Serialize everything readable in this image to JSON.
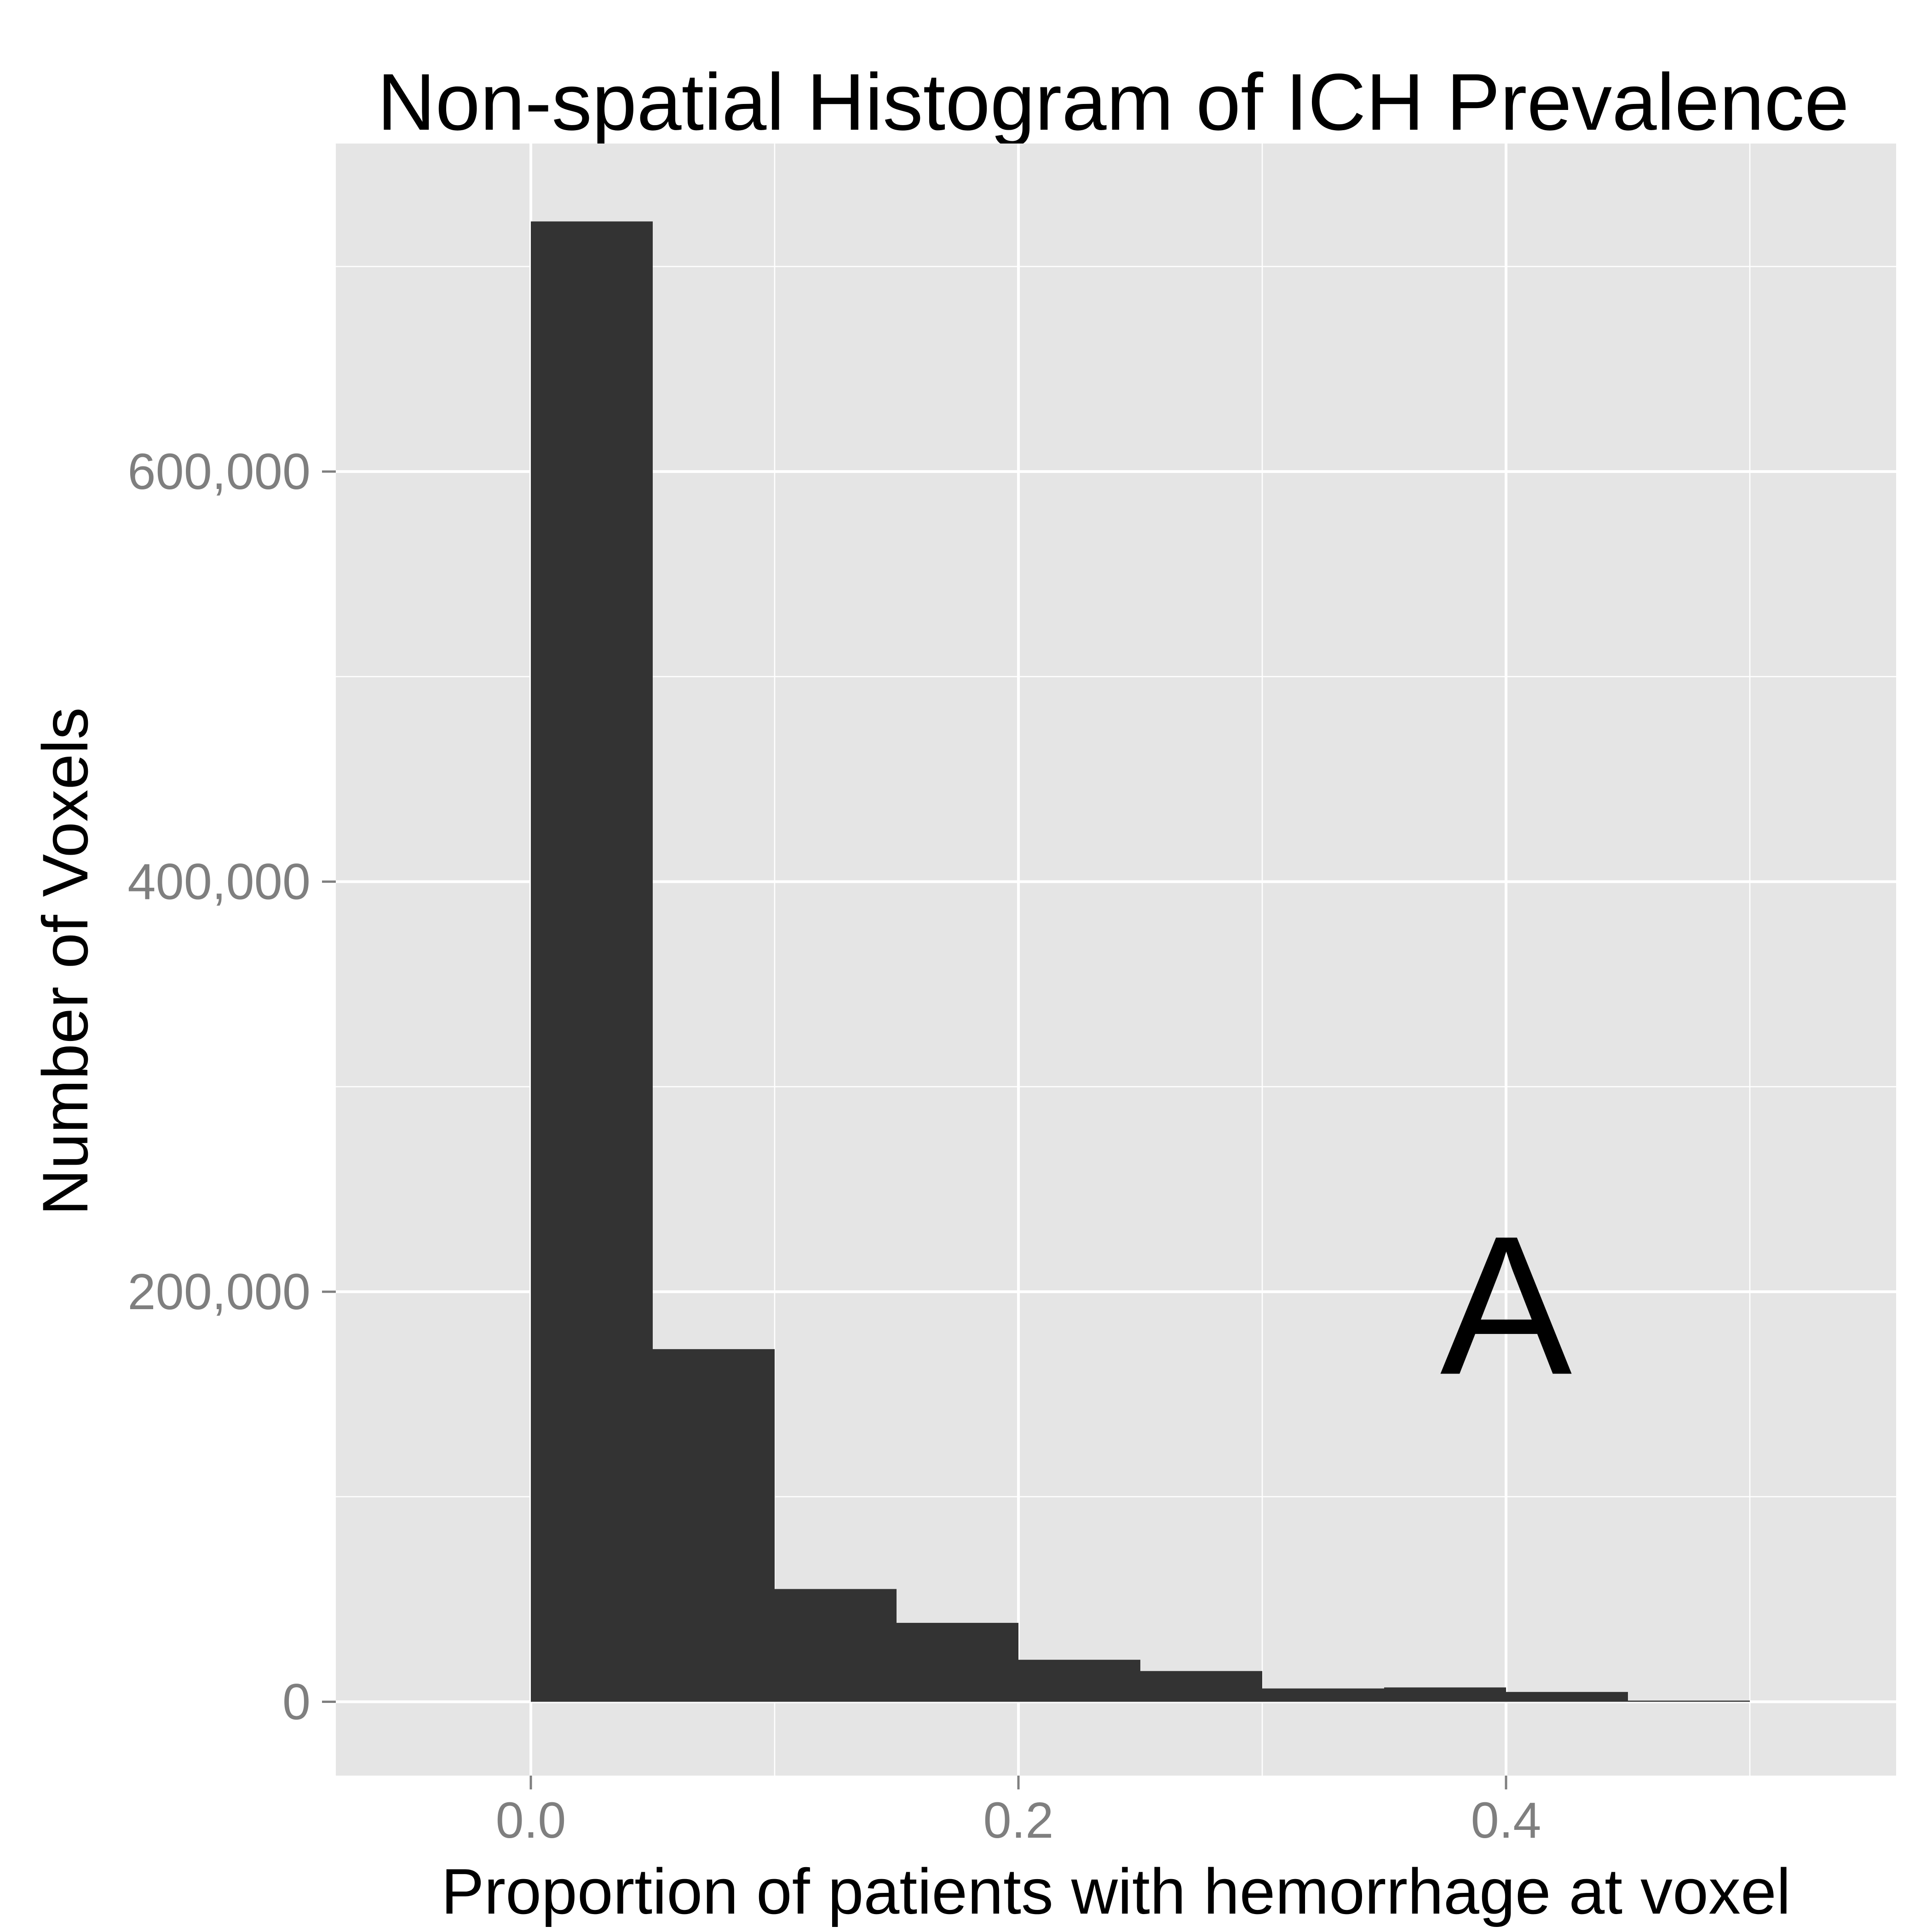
{
  "chart_data": {
    "type": "bar",
    "title": "Non-spatial Histogram of ICH Prevalence",
    "xlabel": "Proportion of patients with hemorrhage at voxel",
    "ylabel": "Number of Voxels",
    "bin_width": 0.05,
    "bins": [
      {
        "x_start": 0.0,
        "x_end": 0.05,
        "count": 722000
      },
      {
        "x_start": 0.05,
        "x_end": 0.1,
        "count": 172000
      },
      {
        "x_start": 0.1,
        "x_end": 0.15,
        "count": 55000
      },
      {
        "x_start": 0.15,
        "x_end": 0.2,
        "count": 38500
      },
      {
        "x_start": 0.2,
        "x_end": 0.25,
        "count": 20500
      },
      {
        "x_start": 0.25,
        "x_end": 0.3,
        "count": 15000
      },
      {
        "x_start": 0.3,
        "x_end": 0.35,
        "count": 6500
      },
      {
        "x_start": 0.35,
        "x_end": 0.4,
        "count": 7000
      },
      {
        "x_start": 0.4,
        "x_end": 0.45,
        "count": 4800
      },
      {
        "x_start": 0.45,
        "x_end": 0.5,
        "count": 600
      }
    ],
    "xlim": [
      -0.08,
      0.56
    ],
    "ylim": [
      -36000,
      760000
    ],
    "x_major_ticks": [
      0.0,
      0.2,
      0.4
    ],
    "x_tick_labels": [
      "0.0",
      "0.2",
      "0.4"
    ],
    "x_minor_gridlines": [
      0.1,
      0.3,
      0.5
    ],
    "y_major_ticks": [
      0,
      200000,
      400000,
      600000
    ],
    "y_tick_labels": [
      "0",
      "200,000",
      "400,000",
      "600,000"
    ],
    "y_minor_gridlines": [
      100000,
      300000,
      500000,
      700000
    ],
    "grid": true,
    "legend": "none",
    "annotation": {
      "text": "A",
      "x": 0.4,
      "y": 160000
    },
    "colors": {
      "bar_fill": "#333333",
      "panel_background": "#e5e5e5",
      "gridline": "#ffffff",
      "tick_label": "#7f7f7f",
      "tick_mark": "#7f7f7f"
    }
  }
}
